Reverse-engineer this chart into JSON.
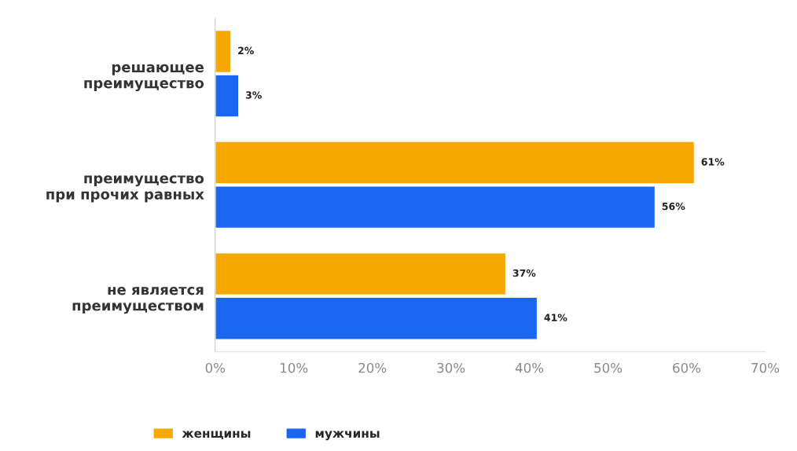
{
  "chart_data": {
    "type": "bar",
    "orientation": "horizontal",
    "categories": [
      "решающее\nпреимущество",
      "преимущество\nпри прочих равных",
      "не является\nпреимуществом"
    ],
    "series": [
      {
        "name": "женщины",
        "color": "#f5a800",
        "values": [
          2,
          61,
          37
        ],
        "value_labels": [
          "2%",
          "61%",
          "37%"
        ]
      },
      {
        "name": "мужчины",
        "color": "#1a66f0",
        "values": [
          3,
          56,
          41
        ],
        "value_labels": [
          "3%",
          "56%",
          "41%"
        ]
      }
    ],
    "xlim": [
      0,
      70
    ],
    "xticks": [
      {
        "value": 0,
        "label": "0%"
      },
      {
        "value": 10,
        "label": "10%"
      },
      {
        "value": 20,
        "label": "20%"
      },
      {
        "value": 30,
        "label": "30%"
      },
      {
        "value": 40,
        "label": "40%"
      },
      {
        "value": 50,
        "label": "50%"
      },
      {
        "value": 60,
        "label": "60%"
      },
      {
        "value": 70,
        "label": "70%"
      }
    ],
    "grid": false,
    "legend": "bottom left"
  }
}
